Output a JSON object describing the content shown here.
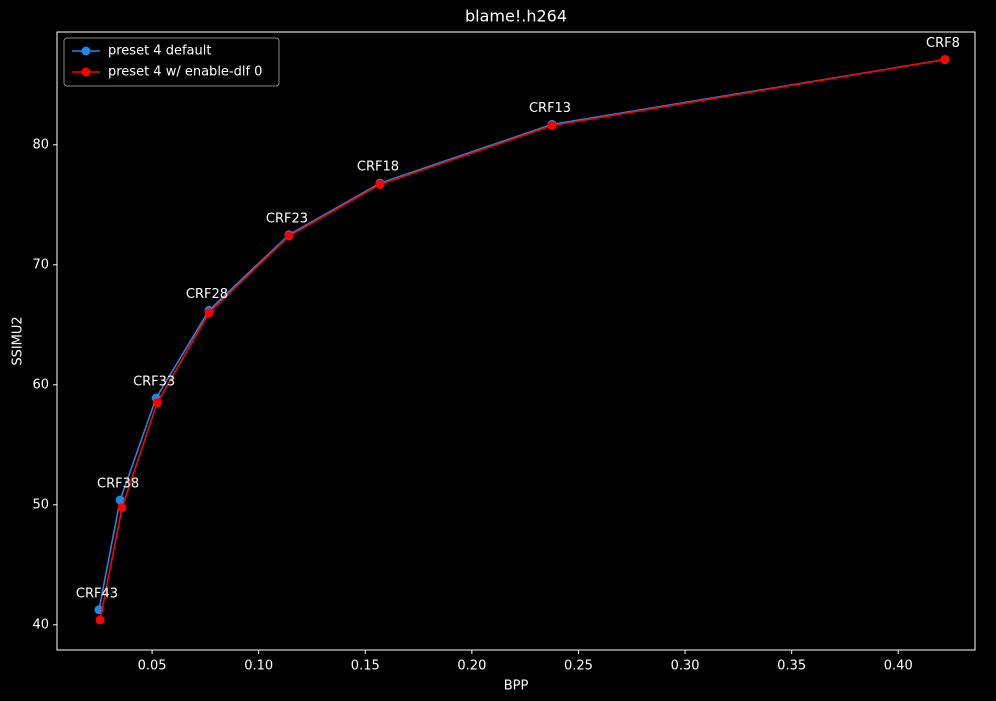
{
  "chart_data": {
    "type": "line",
    "title": "blame!.h264",
    "x_label": "BPP",
    "y_label": "SSIMU2",
    "series": [
      {
        "name": "preset 4 default",
        "color": "#1e88e5",
        "x": [
          0.0251,
          0.035,
          0.0519,
          0.0767,
          0.1142,
          0.1569,
          0.2376,
          0.4219
        ],
        "values": [
          41.25,
          50.4,
          58.9,
          66.2,
          72.5,
          76.8,
          81.7,
          87.1
        ]
      },
      {
        "name": "preset 4 w/ enable-dlf 0",
        "color": "#ff0000",
        "x": [
          0.0256,
          0.0359,
          0.0524,
          0.0767,
          0.1142,
          0.1569,
          0.2376,
          0.4219
        ],
        "values": [
          40.4,
          49.75,
          58.5,
          66.0,
          72.4,
          76.7,
          81.6,
          87.1
        ]
      }
    ],
    "point_labels": [
      "CRF43",
      "CRF38",
      "CRF33",
      "CRF28",
      "CRF23",
      "CRF18",
      "CRF13",
      "CRF8"
    ],
    "xlim": [
      0.0054,
      0.436
    ],
    "xticks": [
      0.05,
      {
        "value": 0.1,
        "label": "0.10"
      },
      0.15,
      {
        "value": 0.2,
        "label": "0.20"
      },
      0.25,
      {
        "value": 0.3,
        "label": "0.30"
      },
      0.35,
      {
        "value": 0.4,
        "label": "0.40"
      }
    ],
    "ylim": [
      37.9,
      89.4
    ],
    "yticks": [
      40,
      50,
      60,
      70,
      80
    ],
    "legend": "upper left"
  }
}
